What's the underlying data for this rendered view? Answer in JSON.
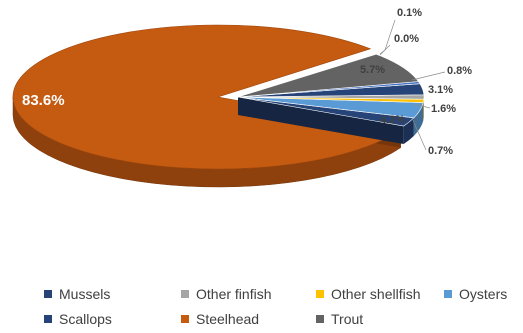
{
  "chart_data": {
    "type": "pie",
    "style": "3d-exploded",
    "title": "",
    "categories": [
      "Mussels",
      "Other finfish",
      "Other shellfish",
      "Oysters",
      "Scallops",
      "Steelhead",
      "Trout"
    ],
    "values": [
      3.1,
      0.8,
      1.6,
      4.2,
      0.7,
      83.6,
      5.7
    ],
    "labels": [
      "3.1%",
      "0.8%",
      "1.6%",
      "4.2%",
      "0.7%",
      "83.6%",
      "5.7%"
    ],
    "extra_labels": [
      "0.1%",
      "0.0%"
    ],
    "colors": {
      "Mussels": "#264478",
      "Other finfish": "#a5a5a5",
      "Other shellfish": "#ffc000",
      "Oysters": "#5b9bd5",
      "Scallops": "#264478",
      "Steelhead": "#c55a11",
      "Trout": "#636363",
      "Minor": "#4472c4"
    },
    "legend_position": "bottom"
  }
}
